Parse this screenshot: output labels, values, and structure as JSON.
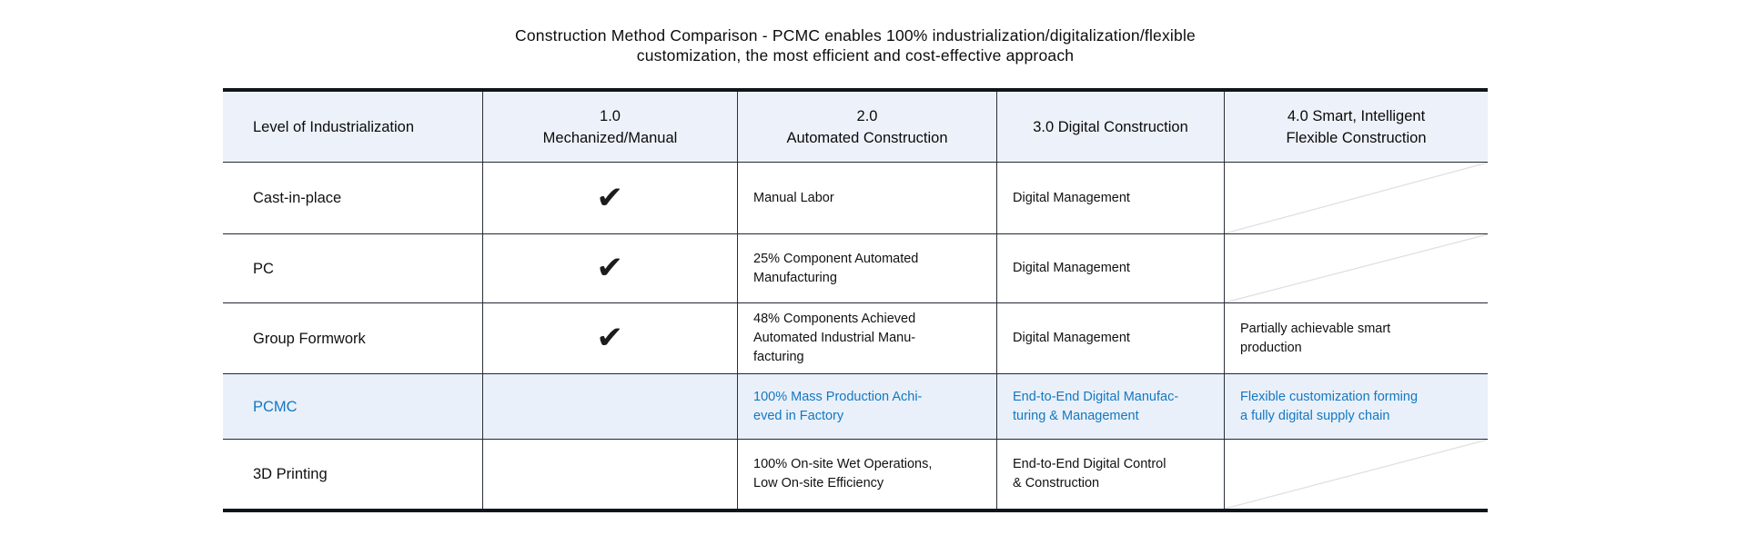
{
  "title": {
    "line1": "Construction Method Comparison - PCMC enables 100% industrialization/digitalization/flexible",
    "line2": "customization, the most efficient and cost-effective approach"
  },
  "icons": {
    "check": "✔"
  },
  "colors": {
    "accent_blue_text": "#1478c0",
    "header_row_bg": "#edf2fa",
    "pcmc_row_bg": "#e9f0fa",
    "thick_border": "#10151d",
    "thin_border": "#222833",
    "diagonal_line": "#d7d7d7"
  },
  "table": {
    "headers": {
      "col1": "Level of Industrialization",
      "col2": "1.0\nMechanized/Manual",
      "col3": "2.0\nAutomated Construction",
      "col4": "3.0 Digital Construction",
      "col5": "4.0 Smart, Intelligent\nFlexible Construction"
    },
    "rows": [
      {
        "method": "Cast-in-place",
        "mechanized": "check",
        "automated": "Manual Labor",
        "digital": "Digital Management",
        "smart": ""
      },
      {
        "method": "PC",
        "mechanized": "check",
        "automated": "25% Component Automated\nManufacturing",
        "digital": "Digital Management",
        "smart": ""
      },
      {
        "method": "Group Formwork",
        "mechanized": "check",
        "automated": "48% Components Achieved\nAutomated Industrial Manu-\nfacturing",
        "digital": "Digital Management",
        "smart": "Partially achievable smart\nproduction"
      },
      {
        "method": "PCMC",
        "mechanized": "",
        "automated": "100% Mass Production Achi-\neved in Factory",
        "digital": "End-to-End Digital Manufac-\nturing & Management",
        "smart": "Flexible customization forming\na fully digital supply chain"
      },
      {
        "method": "3D Printing",
        "mechanized": "",
        "automated": "100% On-site Wet Operations,\nLow On-site Efficiency",
        "digital": "End-to-End Digital Control\n& Construction",
        "smart": ""
      }
    ]
  }
}
